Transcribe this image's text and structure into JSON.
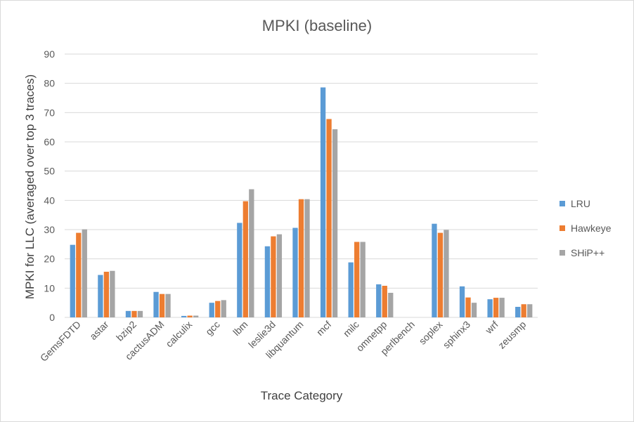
{
  "chart_data": {
    "type": "bar",
    "title": "MPKI (baseline)",
    "xlabel": "Trace Category",
    "ylabel": "MPKI for LLC (averaged over top 3 traces)",
    "ylim": [
      0,
      90
    ],
    "yticks": [
      0,
      10,
      20,
      30,
      40,
      50,
      60,
      70,
      80,
      90
    ],
    "grid": true,
    "legend_position": "right",
    "categories": [
      "GemsFDTD",
      "astar",
      "bzip2",
      "cactusADM",
      "calculix",
      "gcc",
      "lbm",
      "leslie3d",
      "libquantum",
      "mcf",
      "milc",
      "omnetpp",
      "perlbench",
      "soplex",
      "sphinx3",
      "wrf",
      "zeusmp"
    ],
    "series": [
      {
        "name": "LRU",
        "color": "#5b9bd5",
        "values": [
          24.8,
          14.5,
          2.2,
          8.7,
          0.5,
          5.0,
          32.3,
          24.3,
          30.6,
          78.6,
          18.8,
          11.3,
          0.0,
          32.0,
          10.6,
          6.2,
          3.6
        ]
      },
      {
        "name": "Hawkeye",
        "color": "#ed7d31",
        "values": [
          28.9,
          15.6,
          2.2,
          8.0,
          0.6,
          5.6,
          39.7,
          27.7,
          40.4,
          67.8,
          25.8,
          10.8,
          0.0,
          28.9,
          6.8,
          6.7,
          4.5
        ]
      },
      {
        "name": "SHiP++",
        "color": "#a5a5a5",
        "values": [
          30.1,
          15.9,
          2.2,
          8.0,
          0.6,
          5.9,
          43.8,
          28.4,
          40.4,
          64.3,
          25.8,
          8.4,
          0.0,
          29.9,
          5.0,
          6.7,
          4.5
        ]
      }
    ]
  }
}
